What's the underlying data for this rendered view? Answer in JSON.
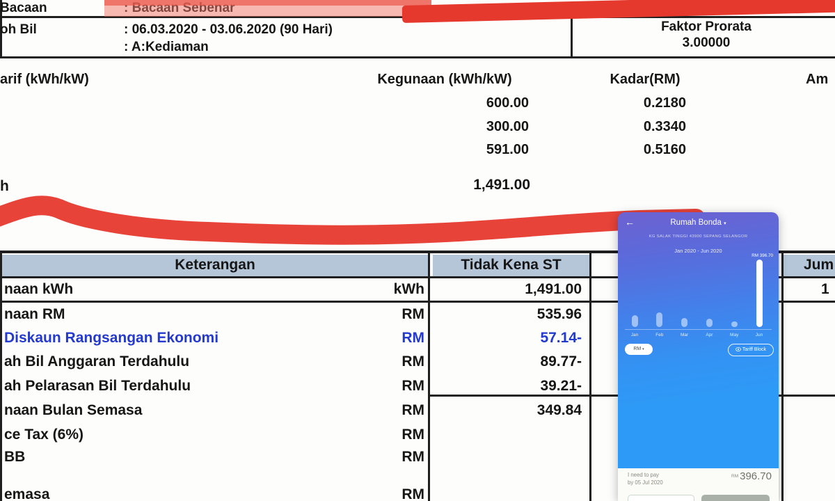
{
  "bill": {
    "meta": {
      "reading_label": "Bacaan",
      "reading_value": ": Bacaan Sebenar",
      "period_label": "oh Bil",
      "period_value": ": 06.03.2020 - 03.06.2020 (90 Hari)",
      "tariff_type_value": ": A:Kediaman",
      "prorata_label": "Faktor Prorata",
      "prorata_value": "3.00000"
    },
    "tariff_section": {
      "col_tariff": "arif (kWh/kW)",
      "col_usage": "Kegunaan (kWh/kW)",
      "col_rate": "Kadar(RM)",
      "col_amount": "Am",
      "rows": [
        {
          "usage": "600.00",
          "rate": "0.2180"
        },
        {
          "usage": "300.00",
          "rate": "0.3340"
        },
        {
          "usage": "591.00",
          "rate": "0.5160"
        }
      ],
      "total_label": "h",
      "total_usage": "1,491.00"
    },
    "charges_table": {
      "col_description": "Keterangan",
      "col_no_st": "Tidak Kena ST",
      "col_total": "Jum",
      "rows": [
        {
          "label": "naan kWh",
          "unit": "kWh",
          "value": "1,491.00"
        },
        {
          "label": "naan RM",
          "unit": "RM",
          "value": "535.96"
        },
        {
          "label": "Diskaun Rangsangan Ekonomi",
          "unit": "RM",
          "value": "57.14-"
        },
        {
          "label": "ah Bil Anggaran Terdahulu",
          "unit": "RM",
          "value": "89.77-"
        },
        {
          "label": "ah Pelarasan Bil Terdahulu",
          "unit": "RM",
          "value": "39.21-"
        },
        {
          "label": "naan Bulan Semasa",
          "unit": "RM",
          "value": "349.84"
        },
        {
          "label": "ce Tax (6%)",
          "unit": "RM",
          "value": ""
        },
        {
          "label": "BB",
          "unit": "RM",
          "value": ""
        },
        {
          "label": "emasa",
          "unit": "RM",
          "value": ""
        }
      ],
      "total_col_value": "1"
    }
  },
  "phone": {
    "back_icon": "←",
    "title": "Rumah Bonda",
    "title_caret": "▾",
    "address": "KG SALAK TINGGI  43900 SEPANG SELANGOR",
    "period": "Jan 2020 - Jun 2020",
    "chart": {
      "max_label": "RM 396.70",
      "bars": [
        {
          "label": "Jan",
          "h": 17
        },
        {
          "label": "Feb",
          "h": 21
        },
        {
          "label": "Mar",
          "h": 13
        },
        {
          "label": "Apr",
          "h": 12
        },
        {
          "label": "May",
          "h": 8
        },
        {
          "label": "Jun",
          "h": 97,
          "solid": true
        }
      ]
    },
    "unit_selector": "RM",
    "unit_caret": "▾",
    "tariff_block_label": "Tariff Block",
    "footer": {
      "pay_line1": "I need to pay",
      "pay_line2": "by 05 Jul 2020",
      "currency": "RM",
      "amount": "396.70"
    }
  },
  "chart_data": {
    "type": "bar",
    "categories": [
      "Jan",
      "Feb",
      "Mar",
      "Apr",
      "May",
      "Jun"
    ],
    "values": [
      70,
      85,
      55,
      50,
      35,
      396.7
    ],
    "title": "Rumah Bonda  Jan 2020 - Jun 2020",
    "xlabel": "",
    "ylabel": "RM",
    "ylim": [
      0,
      400
    ],
    "legend": "none",
    "note": "Jun labeled RM 396.70; other monthly values estimated from bar heights"
  },
  "colors": {
    "table_header_bg": "#b5c6d8",
    "discount_text_blue": "#2439cd",
    "marker_red": "#e6392e",
    "phone_gradient_top": "#6e61d1",
    "phone_blue": "#2e9af7",
    "pay_button_gray": "#a8b0a7"
  }
}
